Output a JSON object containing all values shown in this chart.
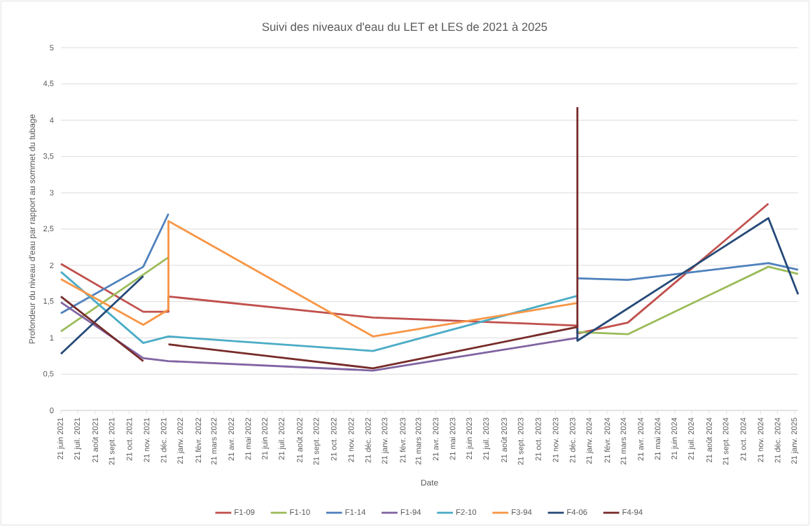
{
  "chart_data": {
    "type": "line",
    "title": "Suivi des niveaux d'eau du LET et LES de 2021 à 2025",
    "xlabel": "Date",
    "ylabel": "Profondeur du niveau d'eau par rapport au sommet du tubage",
    "xlim": [
      "2021-06-21",
      "2025-01-27"
    ],
    "xticks": [
      {
        "value": "2021-06-21",
        "label": "21 juin 2021"
      },
      {
        "value": "2021-07-21",
        "label": "21 juil. 2021"
      },
      {
        "value": "2021-08-21",
        "label": "21 août 2021"
      },
      {
        "value": "2021-09-21",
        "label": "21 sept. 2021"
      },
      {
        "value": "2021-10-21",
        "label": "21 oct. 2021"
      },
      {
        "value": "2021-11-21",
        "label": "21 nov. 2021"
      },
      {
        "value": "2021-12-21",
        "label": "21 déc. 2021"
      },
      {
        "value": "2022-01-21",
        "label": "21 janv. 2022"
      },
      {
        "value": "2022-02-21",
        "label": "21 févr. 2022"
      },
      {
        "value": "2022-03-21",
        "label": "21 mars 2022"
      },
      {
        "value": "2022-04-21",
        "label": "21 avr. 2022"
      },
      {
        "value": "2022-05-21",
        "label": "21 mai 2022"
      },
      {
        "value": "2022-06-21",
        "label": "21 juin 2022"
      },
      {
        "value": "2022-07-21",
        "label": "21 juil. 2022"
      },
      {
        "value": "2022-08-21",
        "label": "21 août 2022"
      },
      {
        "value": "2022-09-21",
        "label": "21 sept. 2022"
      },
      {
        "value": "2022-10-21",
        "label": "21 oct. 2022"
      },
      {
        "value": "2022-11-21",
        "label": "21 nov. 2022"
      },
      {
        "value": "2022-12-21",
        "label": "21 déc. 2022"
      },
      {
        "value": "2023-01-21",
        "label": "21 janv. 2023"
      },
      {
        "value": "2023-02-21",
        "label": "21 févr. 2023"
      },
      {
        "value": "2023-03-21",
        "label": "21 mars 2023"
      },
      {
        "value": "2023-04-21",
        "label": "21 avr. 2023"
      },
      {
        "value": "2023-05-21",
        "label": "21 mai 2023"
      },
      {
        "value": "2023-06-21",
        "label": "21 juin 2023"
      },
      {
        "value": "2023-07-21",
        "label": "21 juil. 2023"
      },
      {
        "value": "2023-08-21",
        "label": "21 août 2023"
      },
      {
        "value": "2023-09-21",
        "label": "21 sept. 2023"
      },
      {
        "value": "2023-10-21",
        "label": "21 oct. 2023"
      },
      {
        "value": "2023-11-21",
        "label": "21 nov. 2023"
      },
      {
        "value": "2023-12-21",
        "label": "21 déc. 2023"
      },
      {
        "value": "2024-01-21",
        "label": "21 janv. 2024"
      },
      {
        "value": "2024-02-21",
        "label": "21 févr. 2024"
      },
      {
        "value": "2024-03-21",
        "label": "21 mars 2024"
      },
      {
        "value": "2024-04-21",
        "label": "21 avr. 2024"
      },
      {
        "value": "2024-05-21",
        "label": "21 mai 2024"
      },
      {
        "value": "2024-06-21",
        "label": "21 juin 2024"
      },
      {
        "value": "2024-07-21",
        "label": "21 juil. 2024"
      },
      {
        "value": "2024-08-21",
        "label": "21 août 2024"
      },
      {
        "value": "2024-09-21",
        "label": "21 sept. 2024"
      },
      {
        "value": "2024-10-21",
        "label": "21 oct. 2024"
      },
      {
        "value": "2024-11-21",
        "label": "21 nov. 2024"
      },
      {
        "value": "2024-12-21",
        "label": "21 déc. 2024"
      },
      {
        "value": "2025-01-21",
        "label": "21 janv. 2025"
      }
    ],
    "ylim": [
      0,
      5
    ],
    "yticks": [
      0,
      {
        "value": 0.5,
        "label": "0,5"
      },
      1,
      {
        "value": 1.5,
        "label": "1,5"
      },
      2,
      {
        "value": 2.5,
        "label": "2,5"
      },
      3,
      {
        "value": 3.5,
        "label": "3,5"
      },
      4,
      {
        "value": 4.5,
        "label": "4,5"
      },
      5
    ],
    "grid": "y",
    "legend": "bottom",
    "series": [
      {
        "name": "F1-09",
        "color": "#c0504d",
        "x": [
          "2021-06-21",
          "2021-11-15",
          "2021-12-30",
          "2021-12-30",
          "2022-12-30",
          "2023-12-30",
          "2023-12-30",
          "2024-03-29",
          "2024-12-05"
        ],
        "values": [
          2.02,
          1.36,
          1.36,
          1.57,
          1.28,
          1.17,
          1.06,
          1.21,
          2.85
        ]
      },
      {
        "name": "F1-10",
        "color": "#9bbb59",
        "x": [
          "2021-06-21",
          "2021-12-30",
          "2022-12-30",
          "2023-12-30",
          "2024-03-29",
          "2024-12-05",
          "2025-01-27"
        ],
        "values": [
          1.09,
          2.11,
          null,
          1.08,
          1.05,
          1.98,
          1.88
        ]
      },
      {
        "name": "F1-14",
        "color": "#4f81bd",
        "x": [
          "2021-06-21",
          "2021-11-15",
          "2021-12-30",
          "2022-12-30",
          "2023-12-30",
          "2024-03-29",
          "2024-12-05",
          "2025-01-27"
        ],
        "values": [
          1.34,
          1.98,
          2.71,
          null,
          1.82,
          1.8,
          2.03,
          1.94
        ]
      },
      {
        "name": "F1-94",
        "color": "#8064a2",
        "x": [
          "2021-06-21",
          "2021-11-15",
          "2021-12-30",
          "2022-12-30",
          "2023-12-30"
        ],
        "values": [
          1.49,
          0.72,
          0.68,
          0.55,
          1.0
        ]
      },
      {
        "name": "F2-10",
        "color": "#4bacc6",
        "x": [
          "2021-06-21",
          "2021-11-15",
          "2021-12-30",
          "2022-12-30",
          "2023-12-30"
        ],
        "values": [
          1.91,
          0.93,
          1.02,
          0.82,
          1.58
        ]
      },
      {
        "name": "F3-94",
        "color": "#f79646",
        "x": [
          "2021-06-21",
          "2021-11-15",
          "2021-12-30",
          "2021-12-30",
          "2022-12-30",
          "2023-12-30"
        ],
        "values": [
          1.81,
          1.18,
          1.39,
          2.61,
          1.02,
          1.48
        ]
      },
      {
        "name": "F4-06",
        "color": "#264a78",
        "x": [
          "2021-06-21",
          "2021-11-15",
          "2022-12-30",
          "2023-12-30",
          "2023-12-30",
          "2024-12-05",
          "2025-01-27"
        ],
        "values": [
          0.78,
          1.85,
          null,
          1.14,
          0.96,
          2.65,
          1.6
        ]
      },
      {
        "name": "F4-94",
        "color": "#772c2a",
        "x": [
          "2021-06-21",
          "2021-11-15",
          "2021-12-15",
          "2021-12-30",
          "2022-12-30",
          "2023-12-30",
          "2023-12-30"
        ],
        "values": [
          1.57,
          0.68,
          null,
          0.91,
          0.58,
          1.15,
          4.18
        ]
      }
    ]
  }
}
